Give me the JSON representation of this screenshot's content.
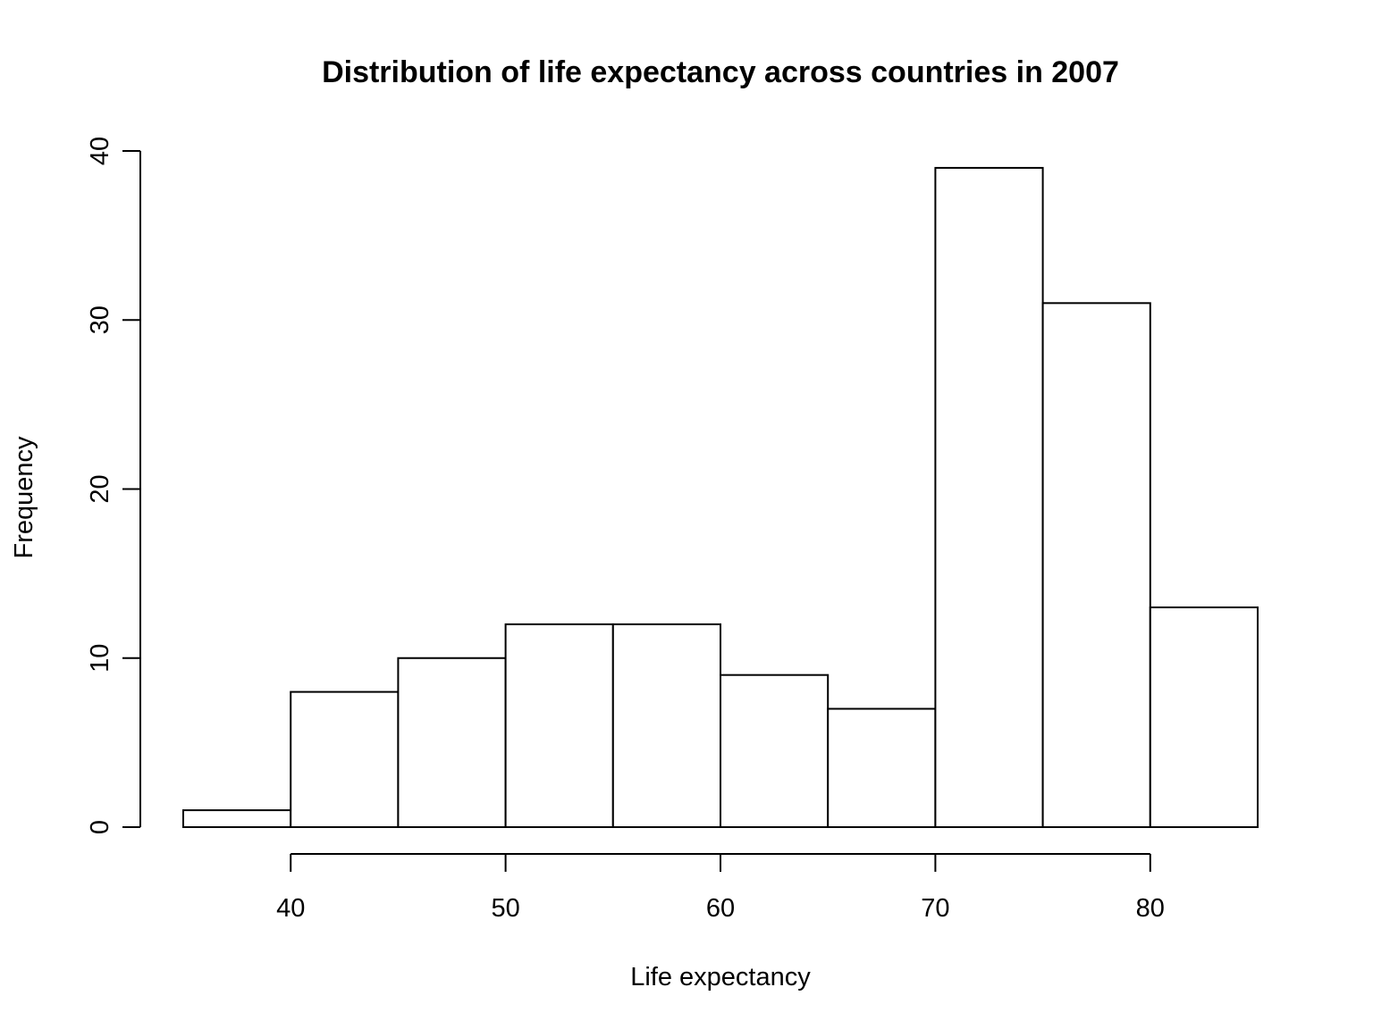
{
  "chart_data": {
    "type": "bar",
    "title": "Distribution of life expectancy across countries in 2007",
    "xlabel": "Life expectancy",
    "ylabel": "Frequency",
    "bins": [
      {
        "start": 35,
        "end": 40,
        "count": 1
      },
      {
        "start": 40,
        "end": 45,
        "count": 8
      },
      {
        "start": 45,
        "end": 50,
        "count": 10
      },
      {
        "start": 50,
        "end": 55,
        "count": 12
      },
      {
        "start": 55,
        "end": 60,
        "count": 12
      },
      {
        "start": 60,
        "end": 65,
        "count": 9
      },
      {
        "start": 65,
        "end": 70,
        "count": 7
      },
      {
        "start": 70,
        "end": 75,
        "count": 39
      },
      {
        "start": 75,
        "end": 80,
        "count": 31
      },
      {
        "start": 80,
        "end": 85,
        "count": 13
      }
    ],
    "xticks": [
      "40",
      "50",
      "60",
      "70",
      "80"
    ],
    "yticks": [
      "0",
      "10",
      "20",
      "30",
      "40"
    ],
    "xlim": [
      35,
      85
    ],
    "ylim": [
      0,
      40
    ],
    "grid": false,
    "colors": {
      "bar_fill": "#ffffff",
      "bar_stroke": "#000000"
    }
  }
}
